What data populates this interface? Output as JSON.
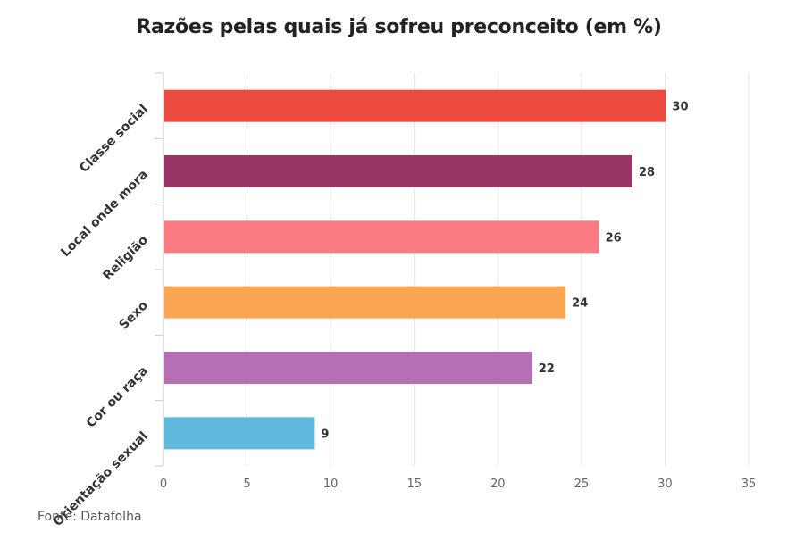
{
  "chart_data": {
    "type": "bar",
    "orientation": "horizontal",
    "title": "Razões pelas quais já sofreu preconceito (em %)",
    "categories": [
      "Classe social",
      "Local onde mora",
      "Religião",
      "Sexo",
      "Cor ou raça",
      "Orientação sexual"
    ],
    "values": [
      30,
      28,
      26,
      24,
      22,
      9
    ],
    "colors": [
      "#ec4a3f",
      "#993564",
      "#f87c82",
      "#fba651",
      "#b46fb5",
      "#61bade"
    ],
    "xlim": [
      0,
      35
    ],
    "xticks": [
      "0",
      "5",
      "10",
      "15",
      "20",
      "25",
      "30",
      "35"
    ],
    "grid": true,
    "data_labels": true
  },
  "footer": {
    "source": "Fonte: Datafolha"
  }
}
